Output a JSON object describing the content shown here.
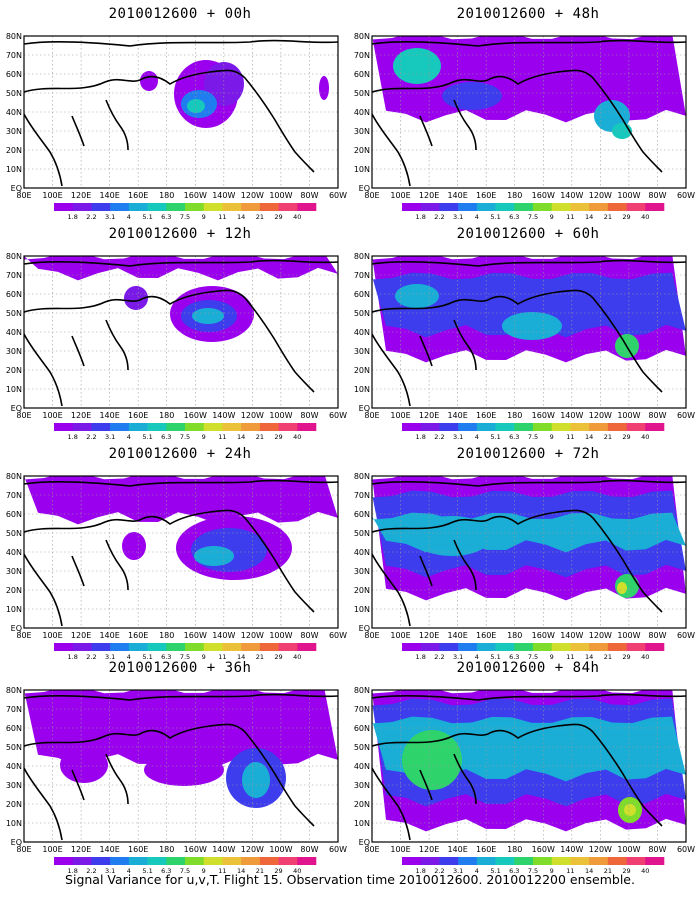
{
  "figure": {
    "caption": "Signal Variance for u,v,T. Flight 15. Observation time 2010012600. 2010012200 ensemble."
  },
  "axes": {
    "x_ticks": [
      "80E",
      "100E",
      "120E",
      "140E",
      "160E",
      "180",
      "160W",
      "140W",
      "120W",
      "100W",
      "80W",
      "60W"
    ],
    "y_ticks": [
      "EQ",
      "10N",
      "20N",
      "30N",
      "40N",
      "50N",
      "60N",
      "70N",
      "80N"
    ]
  },
  "colorbar": {
    "labels": [
      "1.8",
      "2.2",
      "3.1",
      "4",
      "5.1",
      "6.3",
      "7.5",
      "9",
      "11",
      "14",
      "21",
      "29",
      "40"
    ],
    "colors": [
      "#9b00ee",
      "#7a19e8",
      "#3d3dee",
      "#1f7df0",
      "#1aaed6",
      "#16c9bc",
      "#2fd36c",
      "#7fdc2a",
      "#cfdf2b",
      "#ecc13a",
      "#ef9a3b",
      "#f0663b",
      "#f03f72",
      "#e0148c"
    ]
  },
  "panels": [
    {
      "title": "2010012600 + 00h",
      "lead_hours": 0
    },
    {
      "title": "2010012600 + 48h",
      "lead_hours": 48
    },
    {
      "title": "2010012600 + 12h",
      "lead_hours": 12
    },
    {
      "title": "2010012600 + 60h",
      "lead_hours": 60
    },
    {
      "title": "2010012600 + 24h",
      "lead_hours": 24
    },
    {
      "title": "2010012600 + 72h",
      "lead_hours": 72
    },
    {
      "title": "2010012600 + 36h",
      "lead_hours": 36
    },
    {
      "title": "2010012600 + 84h",
      "lead_hours": 84
    }
  ]
}
